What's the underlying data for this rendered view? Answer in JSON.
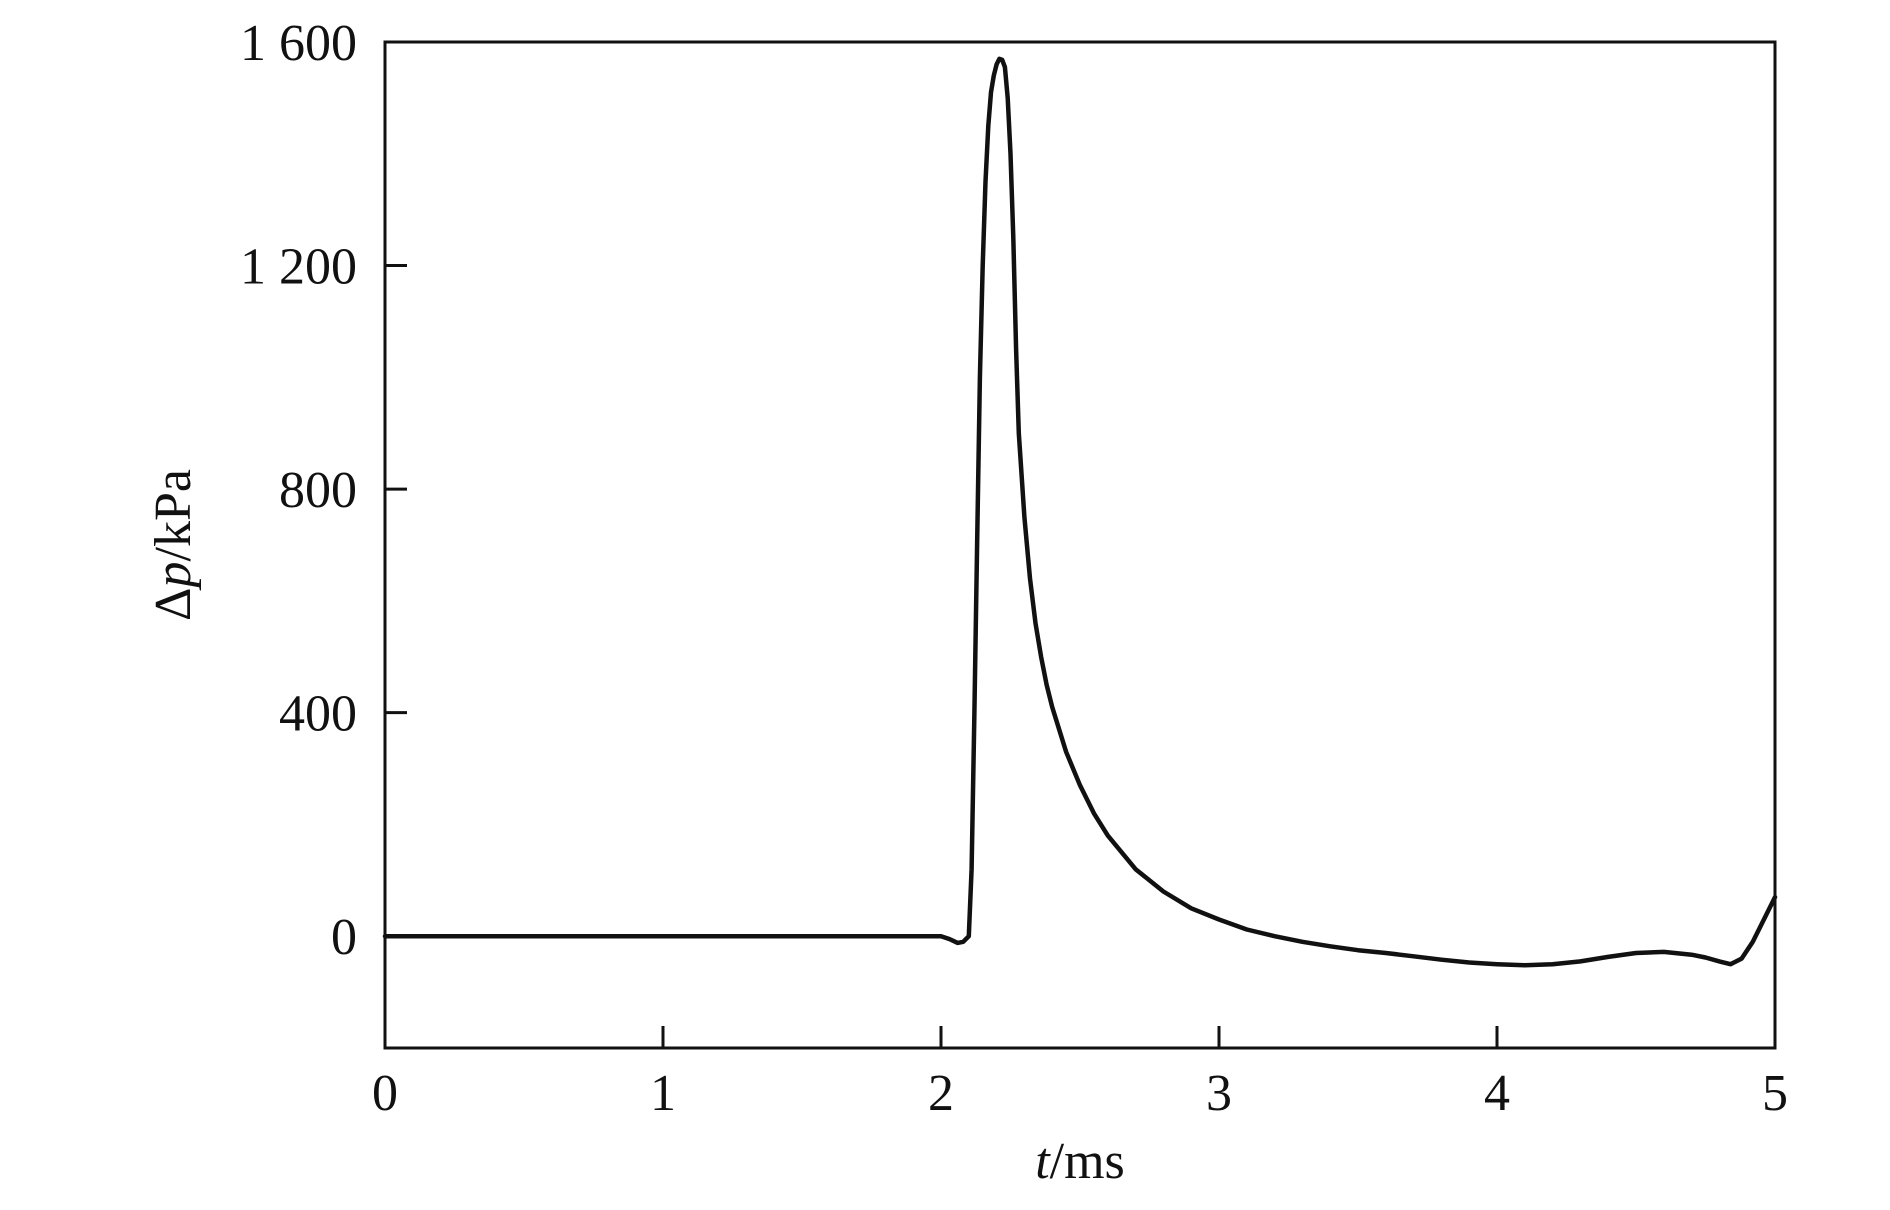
{
  "chart_data": {
    "type": "line",
    "title": "",
    "xlabel": {
      "var": "t",
      "unit": "/ms"
    },
    "ylabel": {
      "prefix": "Δ",
      "var": "p",
      "unit": "/kPa"
    },
    "xlim": [
      0,
      5
    ],
    "ylim": [
      -200,
      1600
    ],
    "xticks": [
      0,
      1,
      2,
      3,
      4,
      5
    ],
    "xtick_labels": [
      "0",
      "1",
      "2",
      "3",
      "4",
      "5"
    ],
    "yticks": [
      0,
      400,
      800,
      1200,
      1600
    ],
    "ytick_labels": [
      "0",
      "400",
      "800",
      "1 200",
      "1 600"
    ],
    "grid": false,
    "legend": "none",
    "line_color": "#111111",
    "series": [
      {
        "x": [
          0.0,
          0.5,
          1.0,
          1.5,
          1.9,
          2.0,
          2.03,
          2.06,
          2.08,
          2.1,
          2.11,
          2.12,
          2.13,
          2.14,
          2.15,
          2.16,
          2.17,
          2.18,
          2.19,
          2.2,
          2.21,
          2.22,
          2.23,
          2.24,
          2.25,
          2.26,
          2.27,
          2.28,
          2.3,
          2.32,
          2.34,
          2.36,
          2.38,
          2.4,
          2.45,
          2.5,
          2.55,
          2.6,
          2.7,
          2.8,
          2.9,
          3.0,
          3.1,
          3.2,
          3.3,
          3.4,
          3.5,
          3.6,
          3.7,
          3.8,
          3.9,
          4.0,
          4.1,
          4.2,
          4.3,
          4.4,
          4.5,
          4.6,
          4.7,
          4.75,
          4.8,
          4.84,
          4.88,
          4.92,
          4.96,
          5.0
        ],
        "y": [
          0,
          0,
          0,
          0,
          0,
          0,
          -5,
          -12,
          -10,
          0,
          120,
          400,
          700,
          1000,
          1200,
          1350,
          1450,
          1510,
          1540,
          1560,
          1570,
          1568,
          1555,
          1500,
          1400,
          1250,
          1050,
          900,
          750,
          640,
          560,
          500,
          450,
          410,
          330,
          270,
          220,
          180,
          120,
          80,
          50,
          30,
          12,
          0,
          -10,
          -18,
          -25,
          -30,
          -36,
          -42,
          -47,
          -50,
          -52,
          -50,
          -45,
          -37,
          -30,
          -28,
          -33,
          -38,
          -45,
          -50,
          -40,
          -10,
          30,
          70
        ]
      }
    ]
  }
}
